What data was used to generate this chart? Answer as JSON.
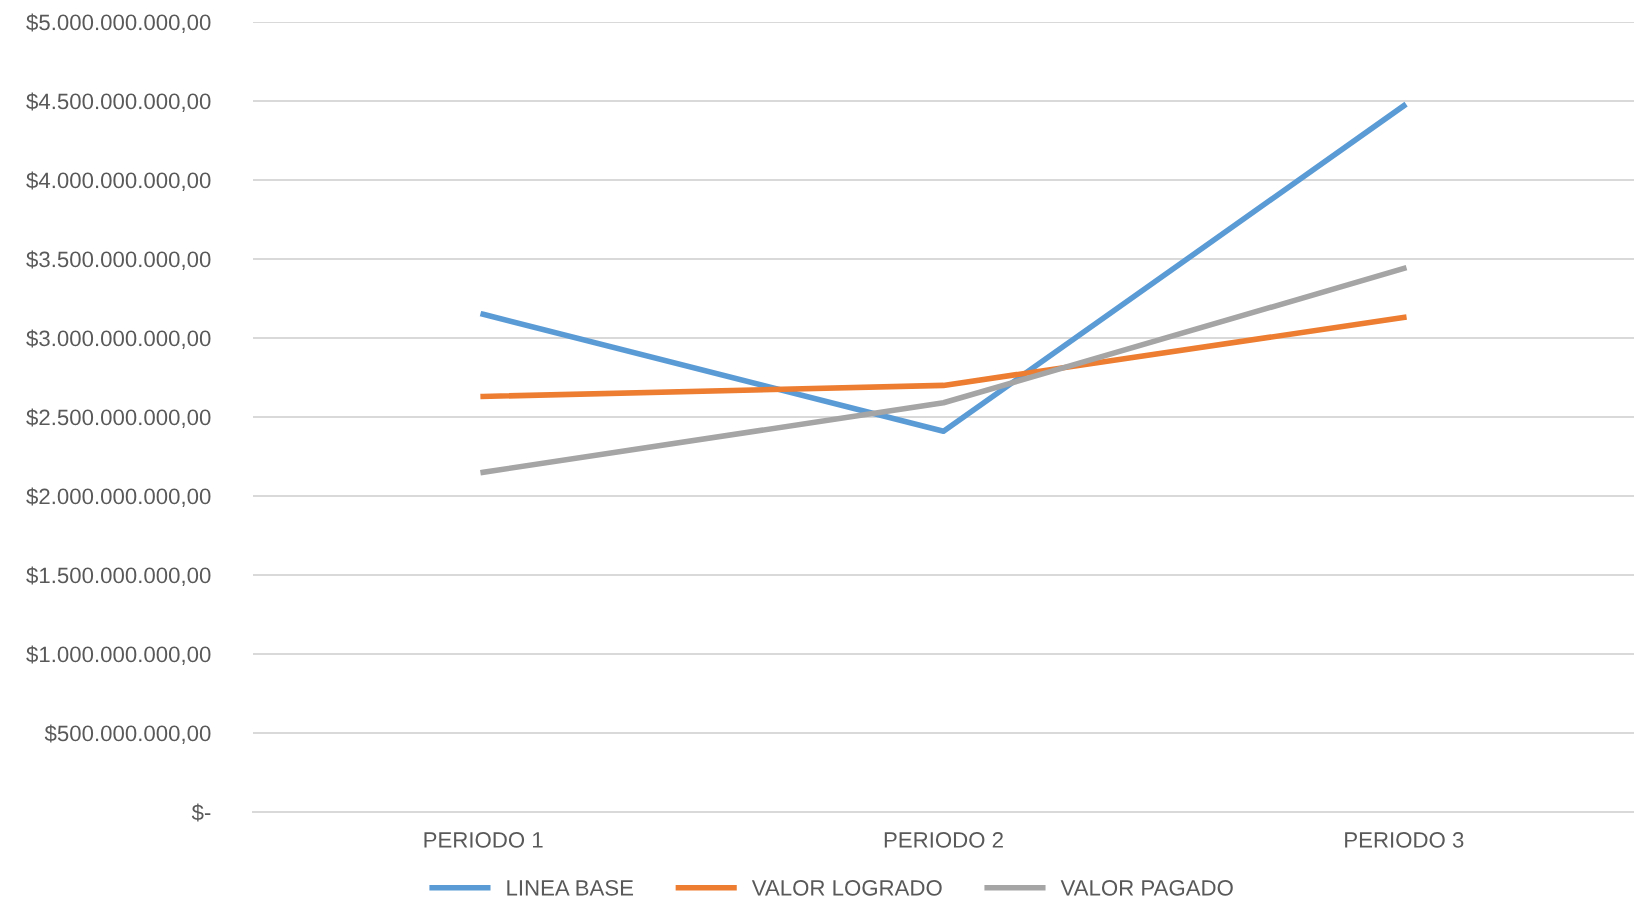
{
  "chart_data": {
    "type": "line",
    "categories": [
      "PERIODO 1",
      "PERIODO 2",
      "PERIODO 3"
    ],
    "series": [
      {
        "name": "LINEA BASE",
        "color": "#5b9bd5",
        "values": [
          3150000000,
          2410000000,
          4470000000
        ]
      },
      {
        "name": "VALOR LOGRADO",
        "color": "#ed7d31",
        "values": [
          2630000000,
          2700000000,
          3130000000
        ]
      },
      {
        "name": "VALOR PAGADO",
        "color": "#a5a5a5",
        "values": [
          2150000000,
          2590000000,
          3440000000
        ]
      }
    ],
    "ylim": [
      0,
      5000000000
    ],
    "yticks": [
      {
        "value": 0,
        "label": "$-"
      },
      {
        "value": 500000000,
        "label": "$500.000.000,00"
      },
      {
        "value": 1000000000,
        "label": "$1.000.000.000,00"
      },
      {
        "value": 1500000000,
        "label": "$1.500.000.000,00"
      },
      {
        "value": 2000000000,
        "label": "$2.000.000.000,00"
      },
      {
        "value": 2500000000,
        "label": "$2.500.000.000,00"
      },
      {
        "value": 3000000000,
        "label": "$3.000.000.000,00"
      },
      {
        "value": 3500000000,
        "label": "$3.500.000.000,00"
      },
      {
        "value": 4000000000,
        "label": "$4.000.000.000,00"
      },
      {
        "value": 4500000000,
        "label": "$4.500.000.000,00"
      },
      {
        "value": 5000000000,
        "label": "$5.000.000.000,00"
      }
    ],
    "grid": "y",
    "legend": "bottom",
    "marker": "none",
    "line_style": "solid"
  }
}
